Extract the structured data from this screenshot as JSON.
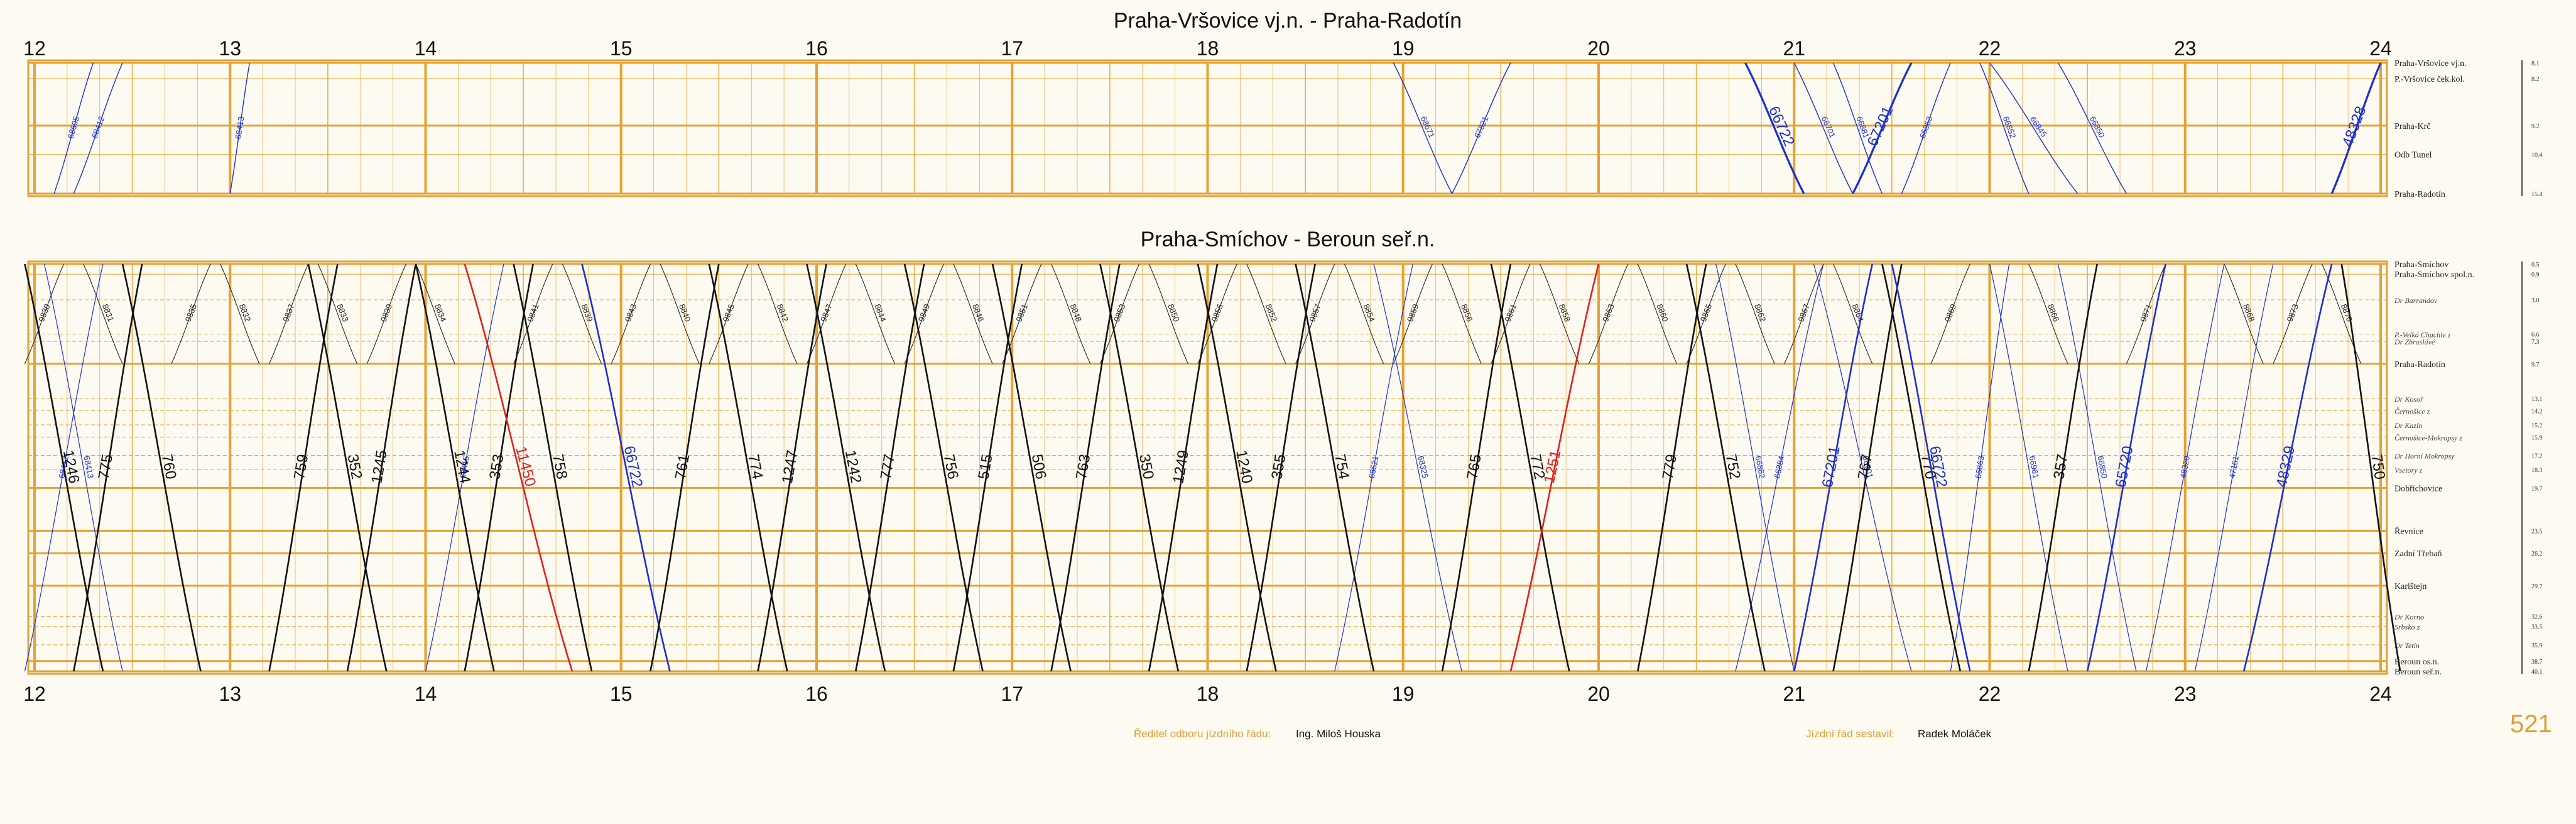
{
  "diagram1": {
    "title": "Praha-Vršovice vj.n. - Praha-Radotín",
    "stations": [
      {
        "name": "Praha-Vršovice vj.n.",
        "km": "8.1",
        "major": true,
        "italic": false,
        "pos": 0.0
      },
      {
        "name": "P.-Vršovice ček.kol.",
        "km": "8.2",
        "major": false,
        "italic": false,
        "pos": 0.12
      },
      {
        "name": "Praha-Krč",
        "km": "9.2",
        "major": true,
        "italic": false,
        "pos": 0.48
      },
      {
        "name": "Odb Tunel",
        "km": "10.4",
        "major": false,
        "italic": false,
        "pos": 0.7
      },
      {
        "name": "Praha-Radotín",
        "km": "15.4",
        "major": true,
        "italic": false,
        "pos": 1.0
      }
    ]
  },
  "diagram2": {
    "title": "Praha-Smíchov - Beroun seř.n.",
    "stations": [
      {
        "name": "Praha-Smíchov",
        "km": "0.5",
        "major": true,
        "italic": false,
        "pos": 0.0
      },
      {
        "name": "Praha-Smíchov spol.n.",
        "km": "0.9",
        "major": false,
        "italic": false,
        "pos": 0.025
      },
      {
        "name": "Dr Barrandov",
        "km": "3.0",
        "major": false,
        "italic": true,
        "pos": 0.088
      },
      {
        "name": "P.-Velká Chuchle z",
        "km": "6.6",
        "major": false,
        "italic": true,
        "pos": 0.172
      },
      {
        "name": "Dr Zbraslávé",
        "km": "7.3",
        "major": false,
        "italic": true,
        "pos": 0.19
      },
      {
        "name": "Praha-Radotín",
        "km": "9.7",
        "major": true,
        "italic": false,
        "pos": 0.245
      },
      {
        "name": "Dr Kosoř",
        "km": "13.1",
        "major": false,
        "italic": true,
        "pos": 0.33
      },
      {
        "name": "Černošice z",
        "km": "14.2",
        "major": false,
        "italic": true,
        "pos": 0.36
      },
      {
        "name": "Dr Kazín",
        "km": "15.2",
        "major": false,
        "italic": true,
        "pos": 0.395
      },
      {
        "name": "Černošice-Mokropsy z",
        "km": "15.9",
        "major": false,
        "italic": true,
        "pos": 0.425
      },
      {
        "name": "Dr Horní Mokropsy",
        "km": "17.2",
        "major": false,
        "italic": true,
        "pos": 0.47
      },
      {
        "name": "Vsetory z",
        "km": "18.3",
        "major": false,
        "italic": true,
        "pos": 0.505
      },
      {
        "name": "Dobřichovice",
        "km": "19.7",
        "major": true,
        "italic": false,
        "pos": 0.55
      },
      {
        "name": "Řevnice",
        "km": "23.5",
        "major": true,
        "italic": false,
        "pos": 0.655
      },
      {
        "name": "Zadní Třebaň",
        "km": "26.2",
        "major": true,
        "italic": false,
        "pos": 0.71
      },
      {
        "name": "Karlštejn",
        "km": "29.7",
        "major": true,
        "italic": false,
        "pos": 0.79
      },
      {
        "name": "Dr Korno",
        "km": "32.6",
        "major": false,
        "italic": true,
        "pos": 0.865
      },
      {
        "name": "Srbsko z",
        "km": "33.5",
        "major": false,
        "italic": true,
        "pos": 0.89
      },
      {
        "name": "Dr Tetín",
        "km": "35.9",
        "major": false,
        "italic": true,
        "pos": 0.935
      },
      {
        "name": "Beroun os.n.",
        "km": "38.7",
        "major": true,
        "italic": false,
        "pos": 0.975
      },
      {
        "name": "Beroun seř.n.",
        "km": "40.1",
        "major": true,
        "italic": false,
        "pos": 1.0
      }
    ]
  },
  "hours": [
    "12",
    "13",
    "14",
    "15",
    "16",
    "17",
    "18",
    "19",
    "20",
    "21",
    "22",
    "23",
    "24"
  ],
  "footer": {
    "director_label": "Ředitel odboru jízdního řádu:",
    "director_value": "Ing. Miloš Houska",
    "compiler_label": "Jízdní řád sestavil:",
    "compiler_value": "Radek Moláček",
    "page_number": "521"
  },
  "colors": {
    "grid": "#e5a234",
    "black_train": "#111111",
    "blue_train": "#1a2fd6",
    "red_train": "#e0201a"
  },
  "trains1": [
    {
      "id": "68695",
      "color": "blue",
      "t0": 12.1,
      "t1": 12.3,
      "dir": "up",
      "w": "thin"
    },
    {
      "id": "68412",
      "color": "blue",
      "t0": 12.2,
      "t1": 12.45,
      "dir": "up",
      "w": "thin"
    },
    {
      "id": "68413",
      "color": "blue",
      "t0": 13.0,
      "t1": 13.1,
      "dir": "up",
      "w": "thin"
    },
    {
      "id": "68671",
      "color": "blue",
      "t0": 18.95,
      "t1": 19.25,
      "dir": "down",
      "w": "thin"
    },
    {
      "id": "67821",
      "color": "blue",
      "t0": 19.25,
      "t1": 19.55,
      "dir": "up",
      "w": "thin"
    },
    {
      "id": "66722",
      "color": "blue",
      "t0": 20.75,
      "t1": 21.05,
      "dir": "down",
      "w": "thick"
    },
    {
      "id": "66701",
      "color": "blue",
      "t0": 21.0,
      "t1": 21.3,
      "dir": "down",
      "w": "thin"
    },
    {
      "id": "66881",
      "color": "blue",
      "t0": 21.2,
      "t1": 21.45,
      "dir": "down",
      "w": "thin"
    },
    {
      "id": "67201",
      "color": "blue",
      "t0": 21.3,
      "t1": 21.6,
      "dir": "up",
      "w": "thick"
    },
    {
      "id": "66863",
      "color": "blue",
      "t0": 21.55,
      "t1": 21.8,
      "dir": "up",
      "w": "thin"
    },
    {
      "id": "66852",
      "color": "blue",
      "t0": 21.95,
      "t1": 22.2,
      "dir": "down",
      "w": "thin"
    },
    {
      "id": "66845",
      "color": "blue",
      "t0": 22.0,
      "t1": 22.45,
      "dir": "down",
      "w": "thin"
    },
    {
      "id": "66850",
      "color": "blue",
      "t0": 22.35,
      "t1": 22.7,
      "dir": "down",
      "w": "thin"
    },
    {
      "id": "48328",
      "color": "blue",
      "t0": 23.75,
      "t1": 24.0,
      "dir": "up",
      "w": "thick"
    }
  ],
  "trains2_big": [
    {
      "id": "1246",
      "color": "black",
      "t0": 11.95,
      "t1": 12.35,
      "dir": "down"
    },
    {
      "id": "775",
      "color": "black",
      "t0": 12.2,
      "t1": 12.55,
      "dir": "up"
    },
    {
      "id": "760",
      "color": "black",
      "t0": 12.45,
      "t1": 12.85,
      "dir": "down"
    },
    {
      "id": "759",
      "color": "black",
      "t0": 13.2,
      "t1": 13.55,
      "dir": "up"
    },
    {
      "id": "352",
      "color": "black",
      "t0": 13.4,
      "t1": 13.8,
      "dir": "down"
    },
    {
      "id": "1245",
      "color": "black",
      "t0": 13.6,
      "t1": 13.95,
      "dir": "up"
    },
    {
      "id": "1244",
      "color": "black",
      "t0": 13.95,
      "t1": 14.35,
      "dir": "down"
    },
    {
      "id": "353",
      "color": "black",
      "t0": 14.2,
      "t1": 14.55,
      "dir": "up"
    },
    {
      "id": "11450",
      "color": "red",
      "t0": 14.2,
      "t1": 14.75,
      "dir": "down"
    },
    {
      "id": "758",
      "color": "black",
      "t0": 14.45,
      "t1": 14.85,
      "dir": "down"
    },
    {
      "id": "66722",
      "color": "blue",
      "t0": 14.8,
      "t1": 15.25,
      "dir": "down"
    },
    {
      "id": "761",
      "color": "black",
      "t0": 15.15,
      "t1": 15.5,
      "dir": "up"
    },
    {
      "id": "774",
      "color": "black",
      "t0": 15.45,
      "t1": 15.85,
      "dir": "down"
    },
    {
      "id": "1247",
      "color": "black",
      "t0": 15.7,
      "t1": 16.05,
      "dir": "up"
    },
    {
      "id": "1242",
      "color": "black",
      "t0": 15.95,
      "t1": 16.35,
      "dir": "down"
    },
    {
      "id": "777",
      "color": "black",
      "t0": 16.2,
      "t1": 16.55,
      "dir": "up"
    },
    {
      "id": "756",
      "color": "black",
      "t0": 16.45,
      "t1": 16.85,
      "dir": "down"
    },
    {
      "id": "515",
      "color": "black",
      "t0": 16.7,
      "t1": 17.05,
      "dir": "up"
    },
    {
      "id": "506",
      "color": "black",
      "t0": 16.9,
      "t1": 17.3,
      "dir": "down"
    },
    {
      "id": "763",
      "color": "black",
      "t0": 17.2,
      "t1": 17.55,
      "dir": "up"
    },
    {
      "id": "350",
      "color": "black",
      "t0": 17.45,
      "t1": 17.85,
      "dir": "down"
    },
    {
      "id": "1249",
      "color": "black",
      "t0": 17.7,
      "t1": 18.05,
      "dir": "up"
    },
    {
      "id": "1240",
      "color": "black",
      "t0": 17.95,
      "t1": 18.35,
      "dir": "down"
    },
    {
      "id": "355",
      "color": "black",
      "t0": 18.2,
      "t1": 18.55,
      "dir": "up"
    },
    {
      "id": "754",
      "color": "black",
      "t0": 18.45,
      "t1": 18.85,
      "dir": "down"
    },
    {
      "id": "765",
      "color": "black",
      "t0": 19.2,
      "t1": 19.55,
      "dir": "up"
    },
    {
      "id": "772",
      "color": "black",
      "t0": 19.45,
      "t1": 19.85,
      "dir": "down"
    },
    {
      "id": "1251",
      "color": "red",
      "t0": 19.55,
      "t1": 20.0,
      "dir": "up"
    },
    {
      "id": "779",
      "color": "black",
      "t0": 20.2,
      "t1": 20.55,
      "dir": "up"
    },
    {
      "id": "752",
      "color": "black",
      "t0": 20.45,
      "t1": 20.85,
      "dir": "down"
    },
    {
      "id": "67201",
      "color": "blue",
      "t0": 21.0,
      "t1": 21.4,
      "dir": "up"
    },
    {
      "id": "767",
      "color": "black",
      "t0": 21.2,
      "t1": 21.55,
      "dir": "up"
    },
    {
      "id": "770",
      "color": "black",
      "t0": 21.45,
      "t1": 21.85,
      "dir": "down"
    },
    {
      "id": "66722",
      "color": "blue",
      "t0": 21.5,
      "t1": 21.9,
      "dir": "down"
    },
    {
      "id": "357",
      "color": "black",
      "t0": 22.2,
      "t1": 22.55,
      "dir": "up"
    },
    {
      "id": "65720",
      "color": "blue",
      "t0": 22.5,
      "t1": 22.9,
      "dir": "up"
    },
    {
      "id": "48329",
      "color": "blue",
      "t0": 23.3,
      "t1": 23.75,
      "dir": "up"
    },
    {
      "id": "750",
      "color": "black",
      "t0": 23.8,
      "t1": 24.1,
      "dir": "down"
    }
  ],
  "trains2_small": [
    {
      "id": "9830",
      "t0": 11.95,
      "t1": 12.15
    },
    {
      "id": "8831",
      "t0": 12.25,
      "t1": 12.45
    },
    {
      "id": "9835",
      "t0": 12.7,
      "t1": 12.9
    },
    {
      "id": "8832",
      "t0": 12.95,
      "t1": 13.15
    },
    {
      "id": "9837",
      "t0": 13.2,
      "t1": 13.4
    },
    {
      "id": "8833",
      "t0": 13.45,
      "t1": 13.65
    },
    {
      "id": "9839",
      "t0": 13.7,
      "t1": 13.9
    },
    {
      "id": "8834",
      "t0": 13.95,
      "t1": 14.15
    },
    {
      "id": "9841",
      "t0": 14.45,
      "t1": 14.65
    },
    {
      "id": "8839",
      "t0": 14.7,
      "t1": 14.9
    },
    {
      "id": "9843",
      "t0": 14.95,
      "t1": 15.15
    },
    {
      "id": "8840",
      "t0": 15.2,
      "t1": 15.4
    },
    {
      "id": "9845",
      "t0": 15.45,
      "t1": 15.65
    },
    {
      "id": "8842",
      "t0": 15.7,
      "t1": 15.9
    },
    {
      "id": "9847",
      "t0": 15.95,
      "t1": 16.15
    },
    {
      "id": "8844",
      "t0": 16.2,
      "t1": 16.4
    },
    {
      "id": "9849",
      "t0": 16.45,
      "t1": 16.65
    },
    {
      "id": "8846",
      "t0": 16.7,
      "t1": 16.9
    },
    {
      "id": "9851",
      "t0": 16.95,
      "t1": 17.15
    },
    {
      "id": "8848",
      "t0": 17.2,
      "t1": 17.4
    },
    {
      "id": "9853",
      "t0": 17.45,
      "t1": 17.65
    },
    {
      "id": "8850",
      "t0": 17.7,
      "t1": 17.9
    },
    {
      "id": "9855",
      "t0": 17.95,
      "t1": 18.15
    },
    {
      "id": "8852",
      "t0": 18.2,
      "t1": 18.4
    },
    {
      "id": "9857",
      "t0": 18.45,
      "t1": 18.65
    },
    {
      "id": "8854",
      "t0": 18.7,
      "t1": 18.9
    },
    {
      "id": "9859",
      "t0": 18.95,
      "t1": 19.15
    },
    {
      "id": "8856",
      "t0": 19.2,
      "t1": 19.4
    },
    {
      "id": "9861",
      "t0": 19.45,
      "t1": 19.65
    },
    {
      "id": "8858",
      "t0": 19.7,
      "t1": 19.9
    },
    {
      "id": "9863",
      "t0": 19.95,
      "t1": 20.15
    },
    {
      "id": "8860",
      "t0": 20.2,
      "t1": 20.4
    },
    {
      "id": "9865",
      "t0": 20.45,
      "t1": 20.65
    },
    {
      "id": "8862",
      "t0": 20.7,
      "t1": 20.9
    },
    {
      "id": "9867",
      "t0": 20.95,
      "t1": 21.15
    },
    {
      "id": "8864",
      "t0": 21.2,
      "t1": 21.4
    },
    {
      "id": "9869",
      "t0": 21.7,
      "t1": 21.9
    },
    {
      "id": "8866",
      "t0": 22.2,
      "t1": 22.4
    },
    {
      "id": "9871",
      "t0": 22.7,
      "t1": 22.9
    },
    {
      "id": "8868",
      "t0": 23.2,
      "t1": 23.4
    },
    {
      "id": "9873",
      "t0": 23.45,
      "t1": 23.65
    },
    {
      "id": "8870",
      "t0": 23.7,
      "t1": 23.9
    }
  ],
  "trains2_blue_thin": [
    {
      "id": "68412",
      "t0": 11.95,
      "t1": 12.35,
      "dir": "up"
    },
    {
      "id": "68413",
      "t0": 12.05,
      "t1": 12.45,
      "dir": "down"
    },
    {
      "id": "68415",
      "t0": 14.0,
      "t1": 14.4,
      "dir": "up"
    },
    {
      "id": "68521",
      "t0": 18.65,
      "t1": 19.05,
      "dir": "up"
    },
    {
      "id": "68325",
      "t0": 18.85,
      "t1": 19.3,
      "dir": "down"
    },
    {
      "id": "66862",
      "t0": 20.6,
      "t1": 21.0,
      "dir": "down"
    },
    {
      "id": "66884",
      "t0": 20.7,
      "t1": 21.15,
      "dir": "up"
    },
    {
      "id": "66701",
      "t0": 21.1,
      "t1": 21.6,
      "dir": "down"
    },
    {
      "id": "66863",
      "t0": 21.8,
      "t1": 22.1,
      "dir": "up"
    },
    {
      "id": "66961",
      "t0": 22.0,
      "t1": 22.4,
      "dir": "down"
    },
    {
      "id": "66850",
      "t0": 22.35,
      "t1": 22.75,
      "dir": "down"
    },
    {
      "id": "48320",
      "t0": 22.8,
      "t1": 23.2,
      "dir": "up"
    },
    {
      "id": "47101",
      "t0": 23.05,
      "t1": 23.45,
      "dir": "up"
    }
  ]
}
